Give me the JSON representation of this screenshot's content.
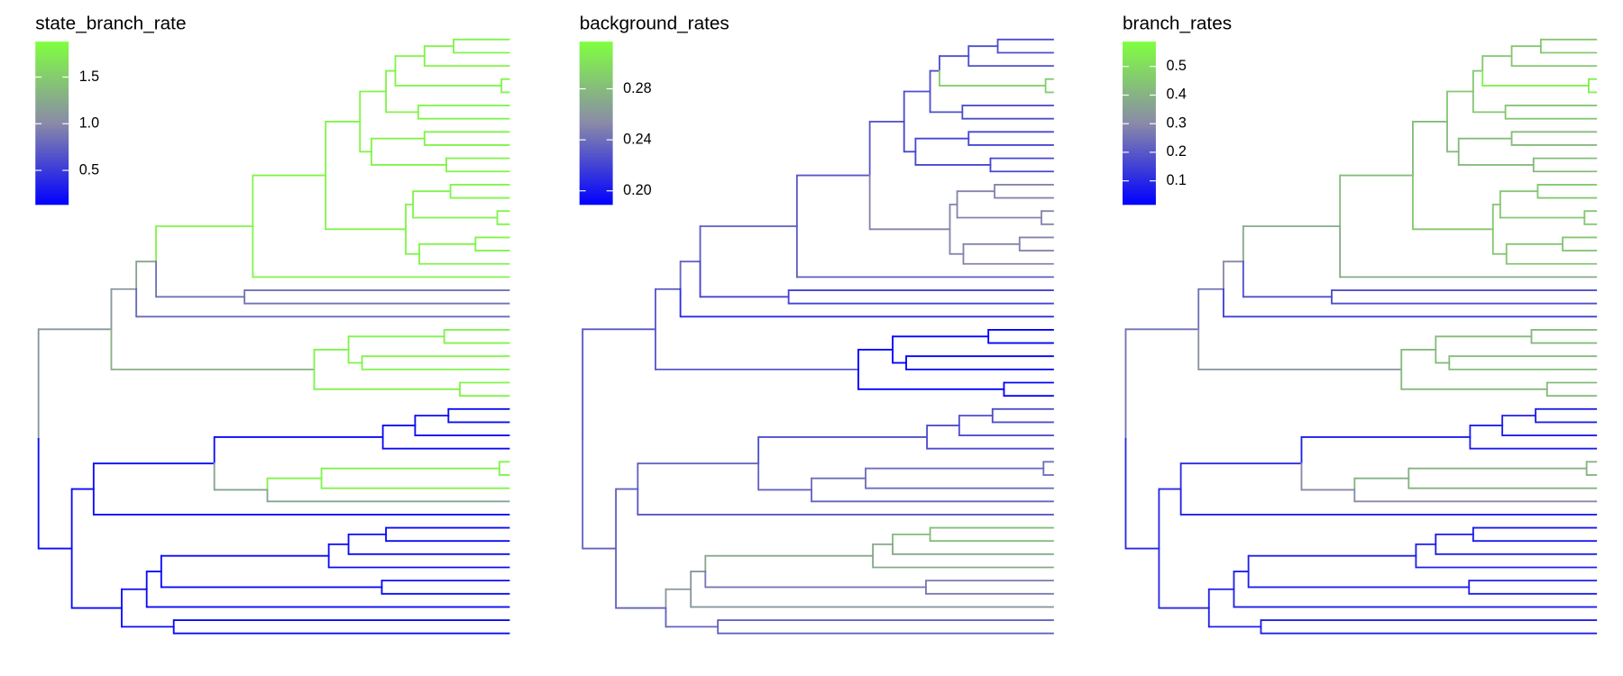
{
  "chart_data": [
    {
      "type": "tree",
      "title": "state_branch_rate",
      "clim": [
        0.13,
        1.88
      ],
      "ticks": [
        0.5,
        {
          "value": 1.0,
          "label": "1.0"
        },
        1.5
      ],
      "colors": [
        "#0000ff",
        "#8a8aa8",
        "#80ff40"
      ]
    },
    {
      "type": "tree",
      "title": "background_rates",
      "clim": [
        0.189,
        0.317
      ],
      "ticks": [
        {
          "value": 0.2,
          "label": "0.20"
        },
        0.24,
        0.28
      ],
      "colors": [
        "#0000ff",
        "#8a8aa8",
        "#80ff40"
      ]
    },
    {
      "type": "tree",
      "title": "branch_rates",
      "clim": [
        0.016,
        0.587
      ],
      "ticks": [
        0.1,
        0.2,
        0.3,
        0.4,
        0.5
      ],
      "colors": [
        "#0000ff",
        "#8a8aa8",
        "#80ff40"
      ]
    }
  ],
  "tree": {
    "xlim": [
      0,
      453
    ],
    "d": 0,
    "c": [
      {
        "d": 70,
        "r": [
          1.1,
          0.23,
          0.25
        ],
        "c": [
          {
            "d": 94,
            "c": [
              {
                "d": 113,
                "r": [
                  1.2,
                  0.235,
                  0.3
                ],
                "c": [
                  {
                    "d": 206,
                    "r": [
                      1.8,
                      0.232,
                      0.38
                    ],
                    "c": [
                      {
                        "d": 276,
                        "r": [
                          1.8,
                          0.23,
                          0.42
                        ],
                        "c": [
                          {
                            "d": 309,
                            "c": [
                              {
                                "d": 334,
                                "r": [
                                  1.8,
                                  0.225,
                                  0.45
                                ],
                                "c": [
                                  {
                                    "d": 343,
                                    "c": [
                                      {
                                        "d": 371,
                                        "c": [
                                          {
                                            "d": 399,
                                            "c": [
                                              {},
                                              {}
                                            ]
                                          },
                                          {}
                                        ]
                                      },
                                      {
                                        "d": 445,
                                        "r": [
                                          1.8,
                                          0.29,
                                          0.55
                                        ],
                                        "c": [
                                          {},
                                          {}
                                        ]
                                      }
                                    ]
                                  },
                                  {
                                    "d": 365,
                                    "c": [
                                      {},
                                      {}
                                    ]
                                  }
                                ]
                              },
                              {
                                "d": 320,
                                "r": [
                                  1.8,
                                  0.222,
                                  0.42
                                ],
                                "c": [
                                  {
                                    "d": 371,
                                    "c": [
                                      {},
                                      {}
                                    ]
                                  },
                                  {
                                    "d": 392,
                                    "c": [
                                      {},
                                      {}
                                    ]
                                  }
                                ]
                              }
                            ]
                          },
                          {
                            "d": 353,
                            "r": [
                              1.8,
                              0.25,
                              0.45
                            ],
                            "c": [
                              {
                                "d": 360,
                                "c": [
                                  {
                                    "d": 396,
                                    "c": [
                                      {},
                                      {}
                                    ]
                                  },
                                  {
                                    "d": 441,
                                    "c": [
                                      {},
                                      {}
                                    ]
                                  }
                                ]
                              },
                              {
                                "d": 366,
                                "c": [
                                  {
                                    "d": 420,
                                    "c": [
                                      {},
                                      {}
                                    ]
                                  },
                                  {}
                                ]
                              }
                            ]
                          }
                        ]
                      },
                      {}
                    ]
                  },
                  {
                    "d": 198,
                    "r": [
                      0.85,
                      0.22,
                      0.18
                    ],
                    "c": [
                      {},
                      {}
                    ]
                  }
                ]
              },
              {
                "r": [
                  0.8,
                  0.21,
                  0.15
                ]
              }
            ]
          },
          {
            "d": 265,
            "r": [
              1.3,
              0.23,
              0.32
            ],
            "c": [
              {
                "d": 298,
                "r": [
                  1.8,
                  0.19,
                  0.42
                ],
                "c": [
                  {
                    "d": 390,
                    "c": [
                      {},
                      {}
                    ]
                  },
                  {
                    "d": 311,
                    "c": [
                      {},
                      {}
                    ]
                  }
                ]
              },
              {
                "d": 405,
                "r": [
                  1.8,
                  0.19,
                  0.42
                ],
                "c": [
                  {},
                  {}
                ]
              }
            ]
          }
        ]
      },
      {
        "d": 32,
        "r": [
          0.2,
          0.235,
          0.1
        ],
        "c": [
          {
            "d": 53,
            "c": [
              {
                "d": 169,
                "c": [
                  {
                    "d": 331,
                    "r": [
                      0.2,
                      0.225,
                      0.08
                    ],
                    "c": [
                      {
                        "d": 362,
                        "c": [
                          {
                            "d": 394,
                            "c": [
                              {},
                              {}
                            ]
                          },
                          {}
                        ]
                      },
                      {}
                    ]
                  },
                  {
                    "d": 220,
                    "r": [
                      1.2,
                      0.235,
                      0.3
                    ],
                    "c": [
                      {
                        "d": 272,
                        "r": [
                          1.8,
                          0.24,
                          0.4
                        ],
                        "c": [
                          {
                            "d": 443,
                            "c": [
                              {},
                              {}
                            ]
                          },
                          {}
                        ]
                      },
                      {}
                    ]
                  }
                ]
              },
              {
                "r": [
                  0.2,
                  0.23,
                  0.08
                ]
              }
            ]
          },
          {
            "d": 80,
            "c": [
              {
                "d": 104,
                "r": [
                  0.2,
                  0.26,
                  0.08
                ],
                "c": [
                  {
                    "d": 118,
                    "c": [
                      {
                        "d": 279,
                        "r": [
                          0.2,
                          0.27,
                          0.08
                        ],
                        "c": [
                          {
                            "d": 298,
                            "c": [
                              {
                                "d": 334,
                                "r": [
                                  0.2,
                                  0.28,
                                  0.07
                                ],
                                "c": [
                                  {},
                                  {}
                                ]
                              },
                              {}
                            ]
                          },
                          {}
                        ]
                      },
                      {
                        "d": 330,
                        "r": [
                          0.2,
                          0.245,
                          0.08
                        ],
                        "c": [
                          {},
                          {}
                        ]
                      }
                    ]
                  },
                  {}
                ]
              },
              {
                "d": 130,
                "r": [
                  0.2,
                  0.235,
                  0.08
                ],
                "c": [
                  {},
                  {}
                ]
              }
            ]
          }
        ]
      }
    ]
  }
}
